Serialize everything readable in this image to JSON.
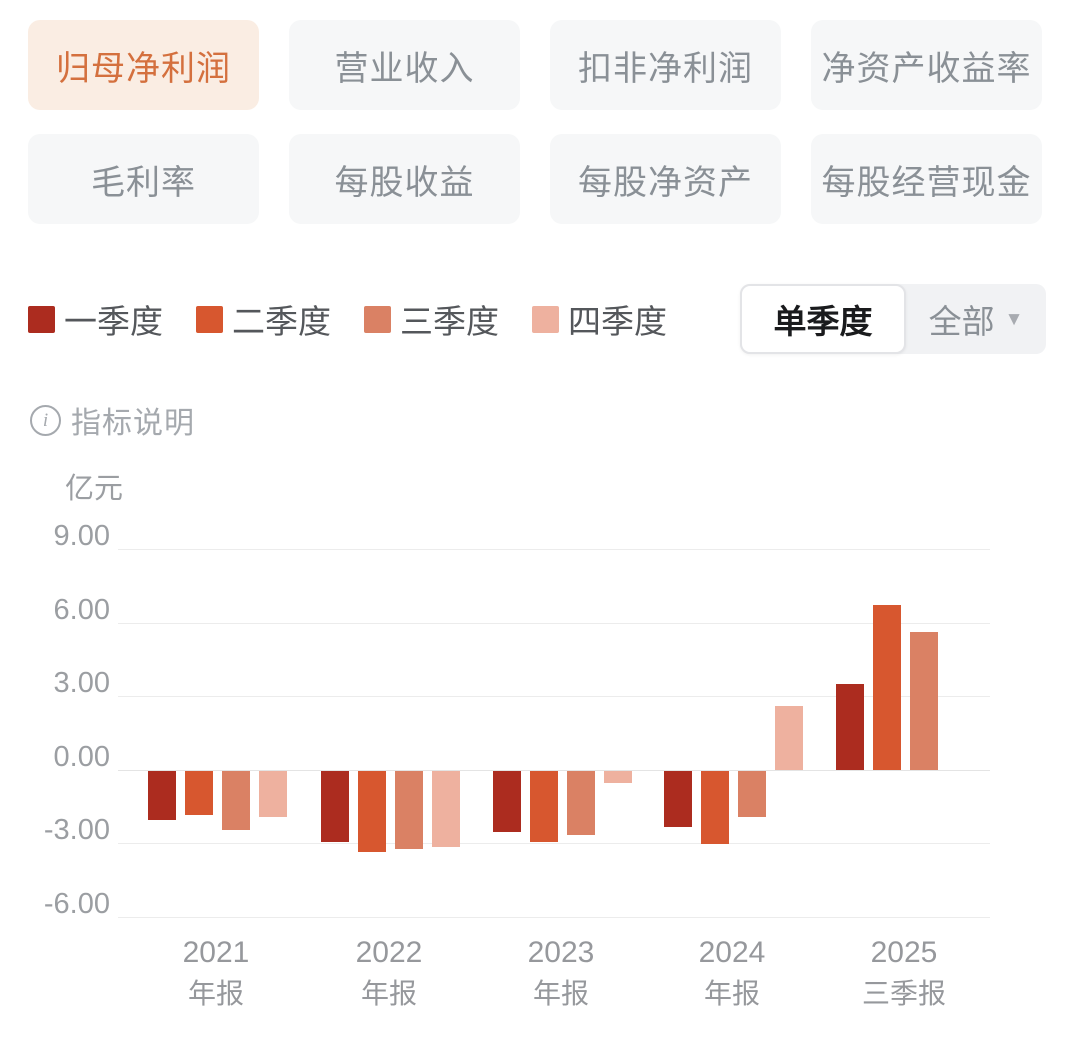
{
  "tabs": {
    "items": [
      {
        "label": "归母净利润",
        "active": true
      },
      {
        "label": "营业收入",
        "active": false
      },
      {
        "label": "扣非净利润",
        "active": false
      },
      {
        "label": "净资产收益率",
        "active": false
      },
      {
        "label": "毛利率",
        "active": false
      },
      {
        "label": "每股收益",
        "active": false
      },
      {
        "label": "每股净资产",
        "active": false
      },
      {
        "label": "每股经营现金",
        "active": false
      }
    ],
    "active_bg": "#FAEDE3",
    "active_color": "#D4703E",
    "inactive_bg": "#F6F7F8",
    "inactive_color": "#8A9096"
  },
  "legend": {
    "items": [
      {
        "label": "一季度",
        "color": "#AC2C1F"
      },
      {
        "label": "二季度",
        "color": "#D7572F"
      },
      {
        "label": "三季度",
        "color": "#DA8164"
      },
      {
        "label": "四季度",
        "color": "#EEB19F"
      }
    ]
  },
  "period_toggle": {
    "options": [
      {
        "label": "单季度",
        "selected": true
      },
      {
        "label": "全部",
        "selected": false,
        "has_caret": true
      }
    ]
  },
  "indicator_link": {
    "label": "指标说明"
  },
  "chart_data": {
    "type": "bar",
    "title": "",
    "unit_label": "亿元",
    "xlabel": "",
    "ylabel": "亿元",
    "ylim": [
      -6,
      9
    ],
    "grid": true,
    "legend_position": "top",
    "yticks": [
      {
        "value": 9,
        "label": "9.00"
      },
      {
        "value": 6,
        "label": "6.00"
      },
      {
        "value": 3,
        "label": "3.00"
      },
      {
        "value": 0,
        "label": "0.00"
      },
      {
        "value": -3,
        "label": "-3.00"
      },
      {
        "value": -6,
        "label": "-6.00"
      }
    ],
    "categories": [
      {
        "line1": "2021",
        "line2": "年报"
      },
      {
        "line1": "2022",
        "line2": "年报"
      },
      {
        "line1": "2023",
        "line2": "年报"
      },
      {
        "line1": "2024",
        "line2": "年报"
      },
      {
        "line1": "2025",
        "line2": "三季报"
      }
    ],
    "series": [
      {
        "name": "一季度",
        "color": "#AC2C1F",
        "values": [
          -2.0,
          -2.9,
          -2.5,
          -2.3,
          3.5
        ]
      },
      {
        "name": "二季度",
        "color": "#D7572F",
        "values": [
          -1.8,
          -3.3,
          -2.9,
          -3.0,
          6.7
        ]
      },
      {
        "name": "三季度",
        "color": "#DA8164",
        "values": [
          -2.4,
          -3.2,
          -2.6,
          -1.9,
          5.6
        ]
      },
      {
        "name": "四季度",
        "color": "#EEB19F",
        "values": [
          -1.9,
          -3.1,
          -0.5,
          2.6,
          null
        ]
      }
    ]
  }
}
